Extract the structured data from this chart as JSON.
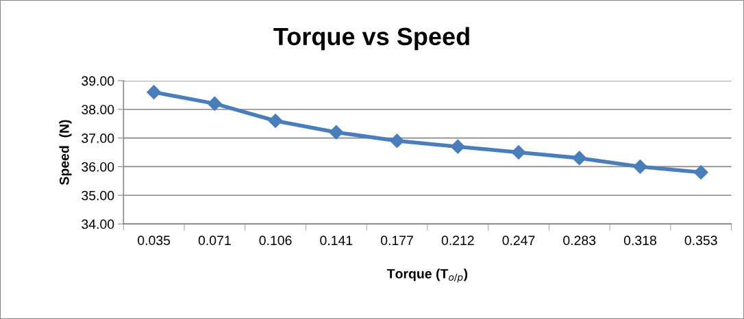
{
  "chart_data": {
    "type": "line",
    "title": "Torque vs Speed",
    "xlabel": "Torque (T$_{o/p}$)",
    "ylabel": "Speed  (N)",
    "categories": [
      "0.035",
      "0.071",
      "0.106",
      "0.141",
      "0.177",
      "0.212",
      "0.247",
      "0.283",
      "0.318",
      "0.353"
    ],
    "series": [
      {
        "color": "#4a7ebb",
        "values": [
          38.6,
          38.2,
          37.6,
          37.2,
          36.9,
          36.7,
          36.5,
          36.3,
          36.0,
          35.8
        ]
      }
    ],
    "ylim": [
      34,
      39
    ],
    "yticks": [
      {
        "value": 34,
        "label": "34.00"
      },
      {
        "value": 35,
        "label": "35.00"
      },
      {
        "value": 36,
        "label": "36.00"
      },
      {
        "value": 37,
        "label": "37.00"
      },
      {
        "value": 38,
        "label": "38.00"
      },
      {
        "value": 39,
        "label": "39.00"
      }
    ],
    "grid": "y",
    "marker": "diamond",
    "line_style": "solid"
  }
}
